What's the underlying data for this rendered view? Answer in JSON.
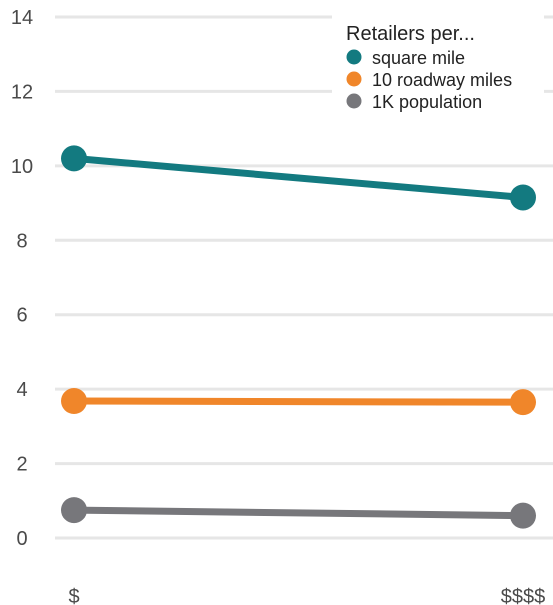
{
  "chart_data": {
    "type": "line",
    "categories": [
      "$",
      "$$$$"
    ],
    "ylim": [
      0,
      14
    ],
    "yticks": [
      "0",
      "2",
      "4",
      "6",
      "8",
      "10",
      "12",
      "14"
    ],
    "grid": true,
    "legend": {
      "title": "Retailers per...",
      "placement": "top-right"
    },
    "series": [
      {
        "name": "square mile",
        "values": [
          10.2,
          9.15
        ],
        "color": "#137a80"
      },
      {
        "name": "10 roadway miles",
        "values": [
          3.68,
          3.65
        ],
        "color": "#f0862a"
      },
      {
        "name": "1K population",
        "values": [
          0.75,
          0.6
        ],
        "color": "#77777b"
      }
    ]
  }
}
